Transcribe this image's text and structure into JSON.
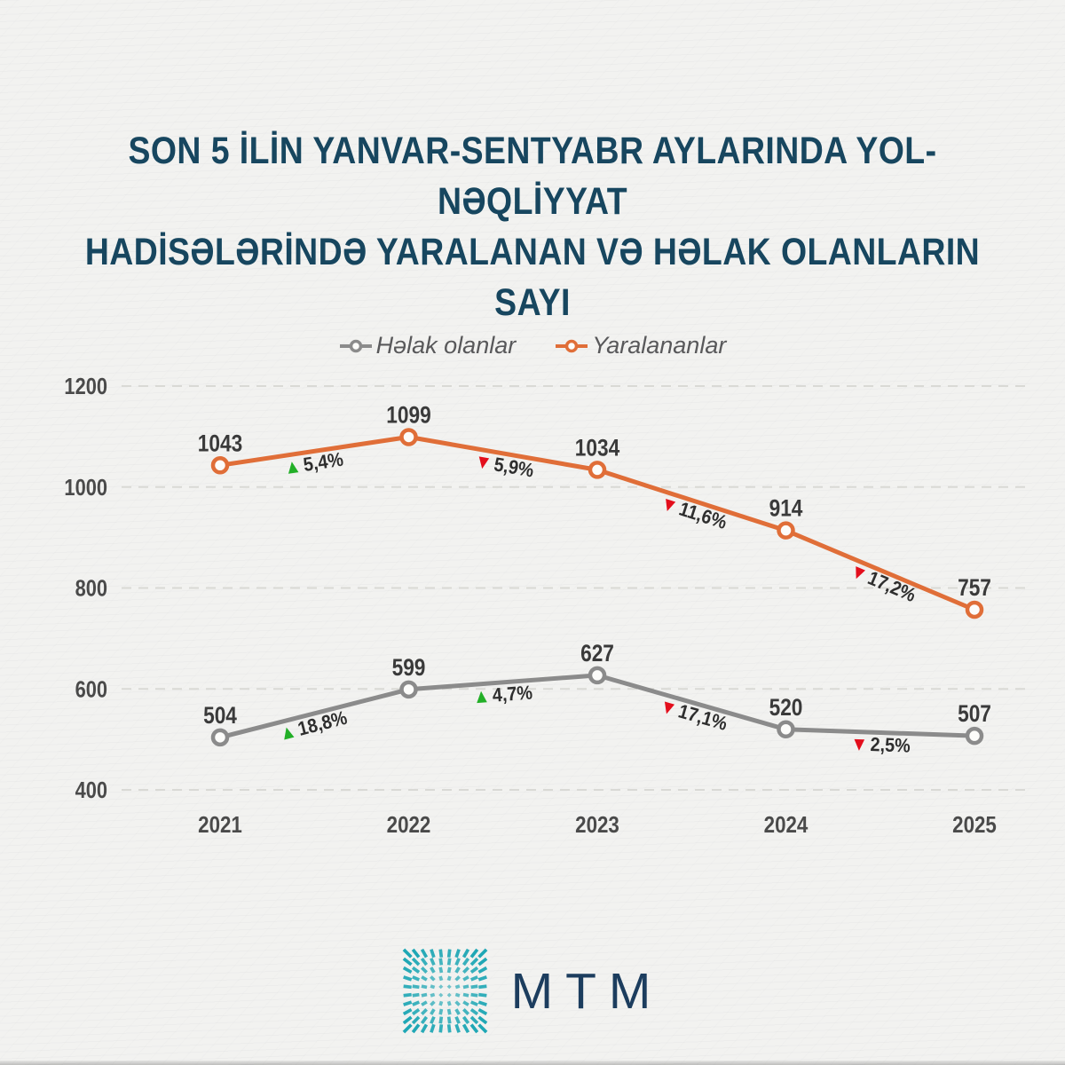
{
  "title": {
    "line1": "SON 5 İLİN YANVAR-SENTYABR AYLARINDA YOL-NƏQLİYYAT",
    "line2": "HADİSƏLƏRİNDƏ YARALANAN VƏ HƏLAK OLANLARIN SAYI"
  },
  "colors": {
    "background": "#F2F2F0",
    "title": "#17465F",
    "grid": "#D9D9D5",
    "axis_text": "#4A4A4A",
    "value_text": "#3A3A3A",
    "annotation_text": "#2E2E2E",
    "legend_text": "#58585A",
    "up": "#22AF27",
    "down": "#E30E1C",
    "brand_text": "#1C3D5E",
    "logo_teal": "#1EA7B5"
  },
  "chart_data": {
    "type": "line",
    "categories": [
      "2021",
      "2022",
      "2023",
      "2024",
      "2025"
    ],
    "series": [
      {
        "name": "Həlak olanlar",
        "color": "#8B8B8B",
        "values": [
          504,
          599,
          627,
          520,
          507
        ],
        "annotations": [
          {
            "after_index": 0,
            "label": "18,8%",
            "direction": "up"
          },
          {
            "after_index": 1,
            "label": "4,7%",
            "direction": "up"
          },
          {
            "after_index": 2,
            "label": "17,1%",
            "direction": "down"
          },
          {
            "after_index": 3,
            "label": "2,5%",
            "direction": "down"
          }
        ]
      },
      {
        "name": "Yaralananlar",
        "color": "#E06E38",
        "values": [
          1043,
          1099,
          1034,
          914,
          757
        ],
        "annotations": [
          {
            "after_index": 0,
            "label": "5,4%",
            "direction": "up"
          },
          {
            "after_index": 1,
            "label": "5,9%",
            "direction": "down"
          },
          {
            "after_index": 2,
            "label": "11,6%",
            "direction": "down"
          },
          {
            "after_index": 3,
            "label": "17,2%",
            "direction": "down"
          }
        ]
      }
    ],
    "ylim": [
      400,
      1200
    ],
    "yticks": [
      400,
      600,
      800,
      1000,
      1200
    ],
    "grid": "horizontal-dashed",
    "legend_position": "top-center",
    "marker": "open-circle"
  },
  "brand": {
    "name": "MTM"
  }
}
